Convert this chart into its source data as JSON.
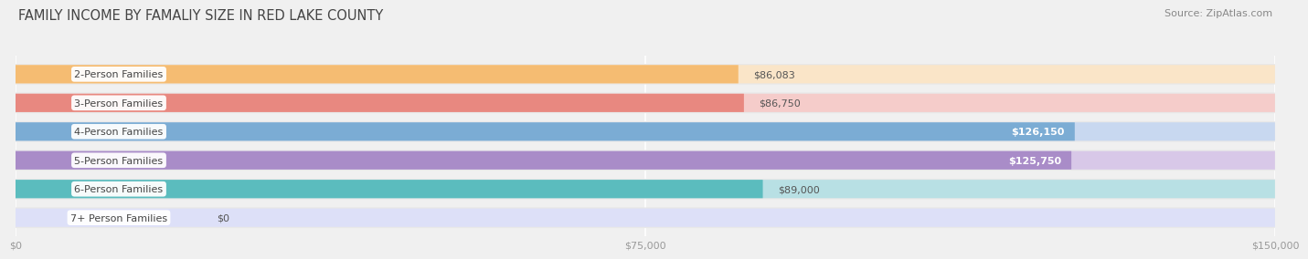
{
  "title": "FAMILY INCOME BY FAMALIY SIZE IN RED LAKE COUNTY",
  "source": "Source: ZipAtlas.com",
  "categories": [
    "2-Person Families",
    "3-Person Families",
    "4-Person Families",
    "5-Person Families",
    "6-Person Families",
    "7+ Person Families"
  ],
  "values": [
    86083,
    86750,
    126150,
    125750,
    89000,
    0
  ],
  "bar_colors": [
    "#F5BC72",
    "#E88880",
    "#7BACD4",
    "#A98CC8",
    "#5BBCBE",
    "#B8C0E8"
  ],
  "bar_bg_colors": [
    "#FAE5C8",
    "#F5CCCA",
    "#C8D8F0",
    "#D8C8E8",
    "#B8E0E4",
    "#DDE0F8"
  ],
  "value_label_dark": "#555555",
  "value_label_light": "#FFFFFF",
  "xmax": 150000,
  "xticks": [
    0,
    75000,
    150000
  ],
  "xticklabels": [
    "$0",
    "$75,000",
    "$150,000"
  ],
  "title_fontsize": 10.5,
  "source_fontsize": 8,
  "bar_label_fontsize": 8,
  "value_fontsize": 8,
  "background_color": "#F0F0F0",
  "bar_row_bg": "#EBEBEB"
}
